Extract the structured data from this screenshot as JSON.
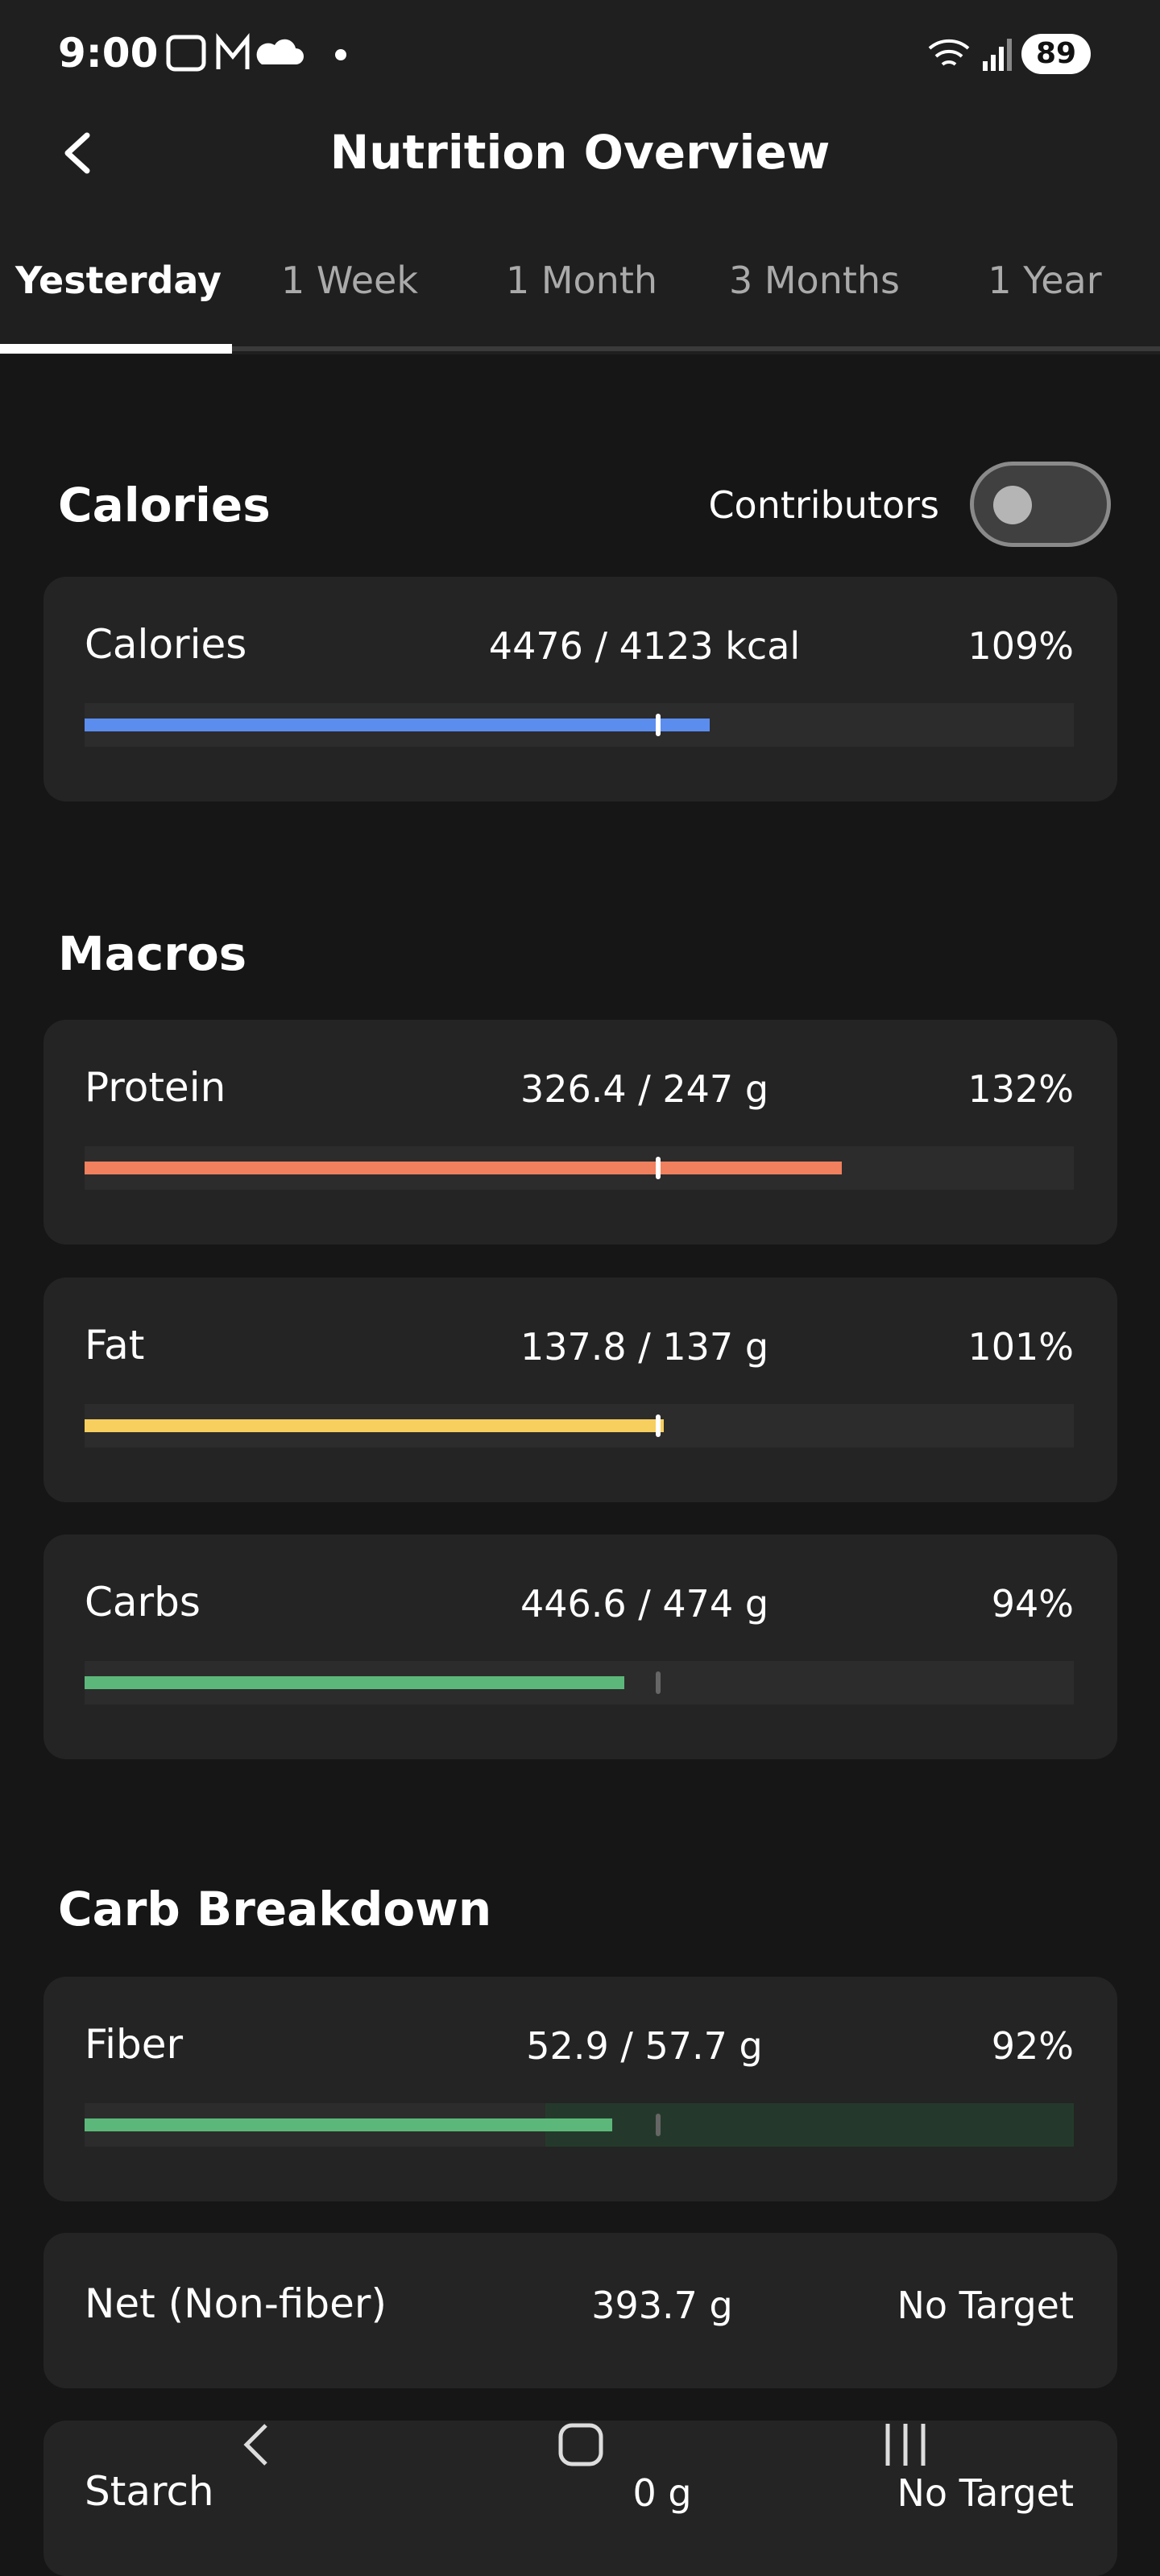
{
  "status_bar": {
    "time": "9:00",
    "battery": "89"
  },
  "header": {
    "title": "Nutrition Overview"
  },
  "tabs": [
    "Yesterday",
    "1 Week",
    "1 Month",
    "3 Months",
    "1 Year"
  ],
  "sections": [
    {
      "title": "Calories",
      "toggle_label": "Contributors",
      "items": [
        {
          "name": "Calories",
          "amount": "4476 / 4123 kcal",
          "percent": {
            "value": 109,
            "label": "109%"
          },
          "color": "#5b8def"
        }
      ]
    },
    {
      "title": "Macros",
      "items": [
        {
          "name": "Protein",
          "amount": "326.4 / 247 g",
          "percent": {
            "value": 132,
            "label": "132%"
          },
          "color": "#f0805e"
        },
        {
          "name": "Fat",
          "amount": "137.8 / 137 g",
          "percent": {
            "value": 101,
            "label": "101%"
          },
          "color": "#f7cf5f"
        },
        {
          "name": "Carbs",
          "amount": "446.6 / 474 g",
          "percent": {
            "value": 94,
            "label": "94%"
          },
          "color": "#5cb87a"
        }
      ]
    },
    {
      "title": "Carb Breakdown",
      "items": [
        {
          "name": "Fiber",
          "amount": "52.9 / 57.7 g",
          "percent": {
            "value": 92,
            "label": "92%"
          },
          "color": "#5cb87a"
        },
        {
          "name": "Net (Non-fiber)",
          "amount": "393.7 g",
          "status": "No Target"
        },
        {
          "name": "Starch",
          "amount": "0 g",
          "status": "No Target"
        }
      ]
    }
  ]
}
